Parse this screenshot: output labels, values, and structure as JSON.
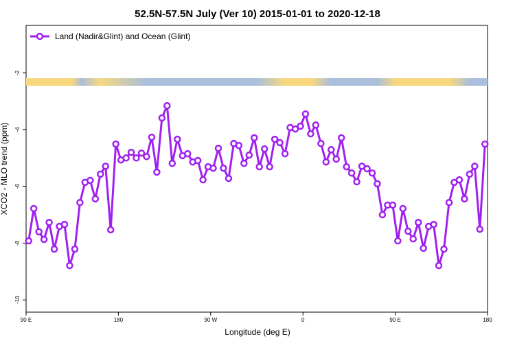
{
  "chart_data": {
    "type": "line",
    "title": "52.5N-57.5N July (Ver 10)   2015-01-01 to 2020-12-18",
    "x_label": "Longitude (deg E)",
    "y_label": "XCO2 - MLO trend (ppm)",
    "x": [
      92.5,
      97.5,
      102.5,
      107.5,
      112.5,
      117.5,
      122.5,
      127.5,
      132.5,
      137.5,
      142.5,
      147.5,
      152.5,
      157.5,
      162.5,
      167.5,
      172.5,
      177.5,
      182.5,
      187.5,
      192.5,
      197.5,
      202.5,
      207.5,
      212.5,
      217.5,
      222.5,
      227.5,
      232.5,
      237.5,
      242.5,
      247.5,
      252.5,
      257.5,
      262.5,
      267.5,
      272.5,
      277.5,
      282.5,
      287.5,
      292.5,
      297.5,
      302.5,
      307.5,
      312.5,
      317.5,
      322.5,
      327.5,
      332.5,
      337.5,
      342.5,
      347.5,
      352.5,
      357.5,
      362.5,
      367.5,
      372.5,
      377.5,
      382.5,
      387.5,
      392.5,
      397.5,
      402.5,
      407.5,
      412.5,
      417.5,
      422.5,
      427.5,
      432.5,
      437.5,
      442.5,
      447.5,
      452.5,
      457.5,
      462.5,
      467.5,
      472.5,
      477.5,
      482.5,
      487.5,
      492.5,
      497.5,
      502.5,
      507.5,
      512.5,
      517.5,
      522.5,
      527.5,
      532.5,
      537.5
    ],
    "series": [
      {
        "name": "Land (Nadir&Glint) and Ocean (Glint)",
        "color": "#a020f0",
        "values": [
          -7.92,
          -6.78,
          -7.6,
          -7.87,
          -7.27,
          -8.21,
          -7.41,
          -7.34,
          -8.79,
          -8.21,
          -6.57,
          -5.86,
          -5.79,
          -6.44,
          -5.57,
          -5.29,
          -7.53,
          -4.51,
          -5.07,
          -5.0,
          -4.8,
          -5.0,
          -4.83,
          -4.95,
          -4.27,
          -5.5,
          -3.59,
          -3.16,
          -5.19,
          -4.34,
          -4.92,
          -4.85,
          -5.14,
          -5.09,
          -5.77,
          -5.31,
          -5.36,
          -4.66,
          -5.36,
          -5.72,
          -4.49,
          -4.56,
          -5.19,
          -4.9,
          -4.29,
          -5.31,
          -4.68,
          -5.31,
          -4.34,
          -4.46,
          -4.85,
          -3.93,
          -3.98,
          -3.88,
          -3.45,
          -4.15,
          -3.84,
          -4.49,
          -5.14,
          -4.71,
          -5.04,
          -4.29,
          -5.31,
          -5.53,
          -5.84,
          -5.29,
          -5.38,
          -5.53,
          -5.91,
          -7.0,
          -6.66,
          -6.66,
          -7.92,
          -6.78,
          -7.58,
          -7.85,
          -7.27,
          -8.18,
          -7.41,
          -7.34,
          -8.79,
          -8.21,
          -6.57,
          -5.86,
          -5.77,
          -6.44,
          -5.57,
          -5.29,
          -7.51,
          -4.51
        ]
      }
    ],
    "xlim": [
      90,
      540
    ],
    "ylim": [
      -10.43,
      -0.33
    ],
    "xticks": [
      {
        "value": 90,
        "label": "90 E"
      },
      180,
      {
        "value": 270,
        "label": "90 W"
      },
      {
        "value": 360,
        "label": "0"
      },
      {
        "value": 450,
        "label": "90 E"
      },
      {
        "value": 540,
        "label": "180"
      }
    ],
    "yticks": [
      -10,
      -8,
      -6,
      -4,
      -2
    ],
    "legend": "top-left"
  }
}
